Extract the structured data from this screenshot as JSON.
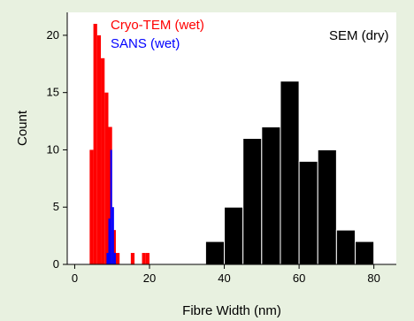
{
  "chart_data": {
    "type": "bar",
    "title": "",
    "xlabel": "Fibre Width (nm)",
    "ylabel": "Count",
    "xlim": [
      -2,
      86
    ],
    "ylim": [
      0,
      22
    ],
    "xticks": [
      0,
      20,
      40,
      60,
      80
    ],
    "yticks": [
      0,
      5,
      10,
      15,
      20
    ],
    "grid": false,
    "legend_position": "top",
    "series": [
      {
        "name": "Cryo-TEM (wet)",
        "color": "#ff0000",
        "bin_width": 1,
        "bins": [
          {
            "x": 4,
            "value": 10
          },
          {
            "x": 5,
            "value": 21
          },
          {
            "x": 6,
            "value": 20
          },
          {
            "x": 7,
            "value": 18
          },
          {
            "x": 8,
            "value": 15
          },
          {
            "x": 9,
            "value": 12
          },
          {
            "x": 10,
            "value": 3
          },
          {
            "x": 11,
            "value": 1
          },
          {
            "x": 15,
            "value": 1
          },
          {
            "x": 18,
            "value": 1
          },
          {
            "x": 19,
            "value": 1
          }
        ]
      },
      {
        "name": "SANS (wet)",
        "color": "#0000ff",
        "bin_width": 0.5,
        "bins": [
          {
            "x": 8.5,
            "value": 1
          },
          {
            "x": 9.0,
            "value": 4
          },
          {
            "x": 9.5,
            "value": 10
          },
          {
            "x": 10.0,
            "value": 5
          },
          {
            "x": 10.5,
            "value": 1
          }
        ]
      },
      {
        "name": "SEM (dry)",
        "color": "#000000",
        "bin_width": 5,
        "bins": [
          {
            "x": 35,
            "value": 2
          },
          {
            "x": 40,
            "value": 5
          },
          {
            "x": 45,
            "value": 11
          },
          {
            "x": 50,
            "value": 12
          },
          {
            "x": 55,
            "value": 16
          },
          {
            "x": 60,
            "value": 9
          },
          {
            "x": 65,
            "value": 10
          },
          {
            "x": 70,
            "value": 3
          },
          {
            "x": 75,
            "value": 2
          }
        ]
      }
    ]
  }
}
